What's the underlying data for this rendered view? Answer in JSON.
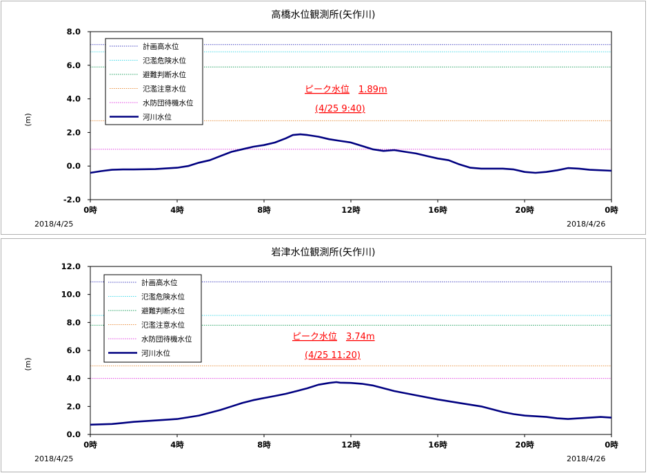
{
  "chart_data": [
    {
      "type": "line",
      "title": "高橋水位観測所(矢作川)",
      "ylabel": "(m)",
      "ylim": [
        -2.0,
        8.0
      ],
      "yticks": [
        "-2.0",
        "0.0",
        "2.0",
        "4.0",
        "6.0",
        "8.0"
      ],
      "ytick_values": [
        -2,
        0,
        2,
        4,
        6,
        8
      ],
      "xlim": [
        0,
        24
      ],
      "xticks": [
        "0時",
        "4時",
        "8時",
        "12時",
        "16時",
        "20時",
        "0時"
      ],
      "xtick_values": [
        0,
        4,
        8,
        12,
        16,
        20,
        24
      ],
      "date_start": "2018/4/25",
      "date_end": "2018/4/26",
      "thresholds": [
        {
          "name": "計画高水位",
          "value": 7.23,
          "color": "#4040c0"
        },
        {
          "name": "氾濫危険水位",
          "value": 6.8,
          "color": "#40d8e8"
        },
        {
          "name": "避難判断水位",
          "value": 5.9,
          "color": "#20a060"
        },
        {
          "name": "氾濫注意水位",
          "value": 2.7,
          "color": "#e89040"
        },
        {
          "name": "水防団待機水位",
          "value": 1.0,
          "color": "#e040e0"
        }
      ],
      "series": [
        {
          "name": "河川水位",
          "color": "#000080",
          "x": [
            0,
            0.5,
            1,
            1.5,
            2,
            3,
            4,
            4.5,
            5,
            5.5,
            6,
            6.5,
            7,
            7.5,
            8,
            8.5,
            9,
            9.33,
            9.67,
            10,
            10.5,
            11,
            11.5,
            12,
            12.5,
            13,
            13.5,
            14,
            14.5,
            15,
            15.5,
            16,
            16.5,
            17,
            17.5,
            18,
            19,
            19.5,
            20,
            20.5,
            21,
            21.5,
            22,
            22.5,
            23,
            24
          ],
          "y": [
            -0.4,
            -0.3,
            -0.22,
            -0.2,
            -0.2,
            -0.18,
            -0.1,
            0.0,
            0.2,
            0.35,
            0.6,
            0.85,
            1.0,
            1.15,
            1.25,
            1.4,
            1.65,
            1.85,
            1.89,
            1.85,
            1.75,
            1.6,
            1.5,
            1.4,
            1.2,
            1.0,
            0.9,
            0.95,
            0.85,
            0.75,
            0.6,
            0.45,
            0.35,
            0.1,
            -0.1,
            -0.15,
            -0.15,
            -0.2,
            -0.35,
            -0.4,
            -0.35,
            -0.25,
            -0.12,
            -0.15,
            -0.22,
            -0.28
          ]
        }
      ],
      "annotation": {
        "label": "ピーク水位",
        "value": "1.89m",
        "time": "(4/25 9:40)"
      }
    },
    {
      "type": "line",
      "title": "岩津水位観測所(矢作川)",
      "ylabel": "(m)",
      "ylim": [
        0.0,
        12.0
      ],
      "yticks": [
        "0.0",
        "2.0",
        "4.0",
        "6.0",
        "8.0",
        "10.0",
        "12.0"
      ],
      "ytick_values": [
        0,
        2,
        4,
        6,
        8,
        10,
        12
      ],
      "xlim": [
        0,
        24
      ],
      "xticks": [
        "0時",
        "4時",
        "8時",
        "12時",
        "16時",
        "20時",
        "0時"
      ],
      "xtick_values": [
        0,
        4,
        8,
        12,
        16,
        20,
        24
      ],
      "date_start": "2018/4/25",
      "date_end": "2018/4/26",
      "thresholds": [
        {
          "name": "計画高水位",
          "value": 10.9,
          "color": "#4040c0"
        },
        {
          "name": "氾濫危険水位",
          "value": 8.5,
          "color": "#40d8e8"
        },
        {
          "name": "避難判断水位",
          "value": 7.8,
          "color": "#20a060"
        },
        {
          "name": "氾濫注意水位",
          "value": 4.9,
          "color": "#e89040"
        },
        {
          "name": "水防団待機水位",
          "value": 4.0,
          "color": "#e040e0"
        }
      ],
      "series": [
        {
          "name": "河川水位",
          "color": "#000080",
          "x": [
            0,
            1,
            1.5,
            2,
            3,
            4,
            5,
            6,
            6.5,
            7,
            7.5,
            8,
            8.5,
            9,
            9.5,
            10,
            10.5,
            11,
            11.33,
            11.5,
            12,
            12.5,
            13,
            13.5,
            14,
            15,
            16,
            17,
            18,
            18.5,
            19,
            19.5,
            20,
            20.5,
            21,
            21.5,
            22,
            22.5,
            23,
            23.5,
            24
          ],
          "y": [
            0.7,
            0.75,
            0.82,
            0.9,
            1.0,
            1.1,
            1.35,
            1.75,
            2.0,
            2.25,
            2.45,
            2.6,
            2.75,
            2.9,
            3.1,
            3.3,
            3.55,
            3.68,
            3.74,
            3.7,
            3.68,
            3.62,
            3.5,
            3.3,
            3.1,
            2.8,
            2.5,
            2.25,
            2.0,
            1.8,
            1.6,
            1.45,
            1.35,
            1.3,
            1.25,
            1.15,
            1.1,
            1.15,
            1.2,
            1.25,
            1.2
          ]
        }
      ],
      "annotation": {
        "label": "ピーク水位",
        "value": "3.74m",
        "time": "(4/25 11:20)"
      }
    }
  ]
}
